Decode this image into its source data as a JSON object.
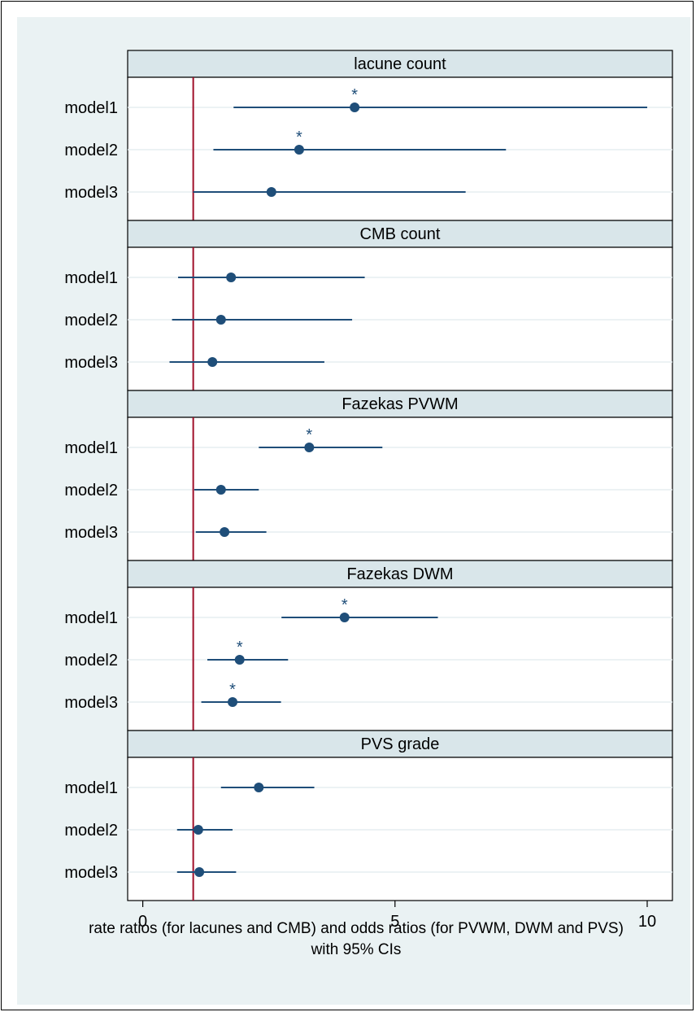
{
  "chart_data": {
    "type": "forest",
    "reference_line": 1,
    "xlim": [
      -0.3,
      10.5
    ],
    "xticks": [
      0,
      5,
      10
    ],
    "xlabel_lines": [
      "rate ratios (for lacunes and CMB) and odds ratios (for PVWM, DWM and PVS)",
      "with 95% CIs"
    ],
    "colors": {
      "point": "#1f4e79",
      "reference": "#a0102a",
      "strip": "#d9e6ea"
    },
    "panels": [
      {
        "title": "lacune count",
        "rows": [
          {
            "label": "model1",
            "est": 4.2,
            "lo": 1.8,
            "hi": 10.0,
            "sig": true
          },
          {
            "label": "model2",
            "est": 3.1,
            "lo": 1.4,
            "hi": 7.2,
            "sig": true
          },
          {
            "label": "model3",
            "est": 2.55,
            "lo": 1.0,
            "hi": 6.4,
            "sig": false
          }
        ]
      },
      {
        "title": "CMB count",
        "rows": [
          {
            "label": "model1",
            "est": 1.75,
            "lo": 0.7,
            "hi": 4.4,
            "sig": false
          },
          {
            "label": "model2",
            "est": 1.55,
            "lo": 0.58,
            "hi": 4.15,
            "sig": false
          },
          {
            "label": "model3",
            "est": 1.38,
            "lo": 0.53,
            "hi": 3.6,
            "sig": false
          }
        ]
      },
      {
        "title": "Fazekas PVWM",
        "rows": [
          {
            "label": "model1",
            "est": 3.3,
            "lo": 2.3,
            "hi": 4.75,
            "sig": true
          },
          {
            "label": "model2",
            "est": 1.55,
            "lo": 1.02,
            "hi": 2.3,
            "sig": false
          },
          {
            "label": "model3",
            "est": 1.62,
            "lo": 1.05,
            "hi": 2.45,
            "sig": false
          }
        ]
      },
      {
        "title": "Fazekas DWM",
        "rows": [
          {
            "label": "model1",
            "est": 4.0,
            "lo": 2.75,
            "hi": 5.85,
            "sig": true
          },
          {
            "label": "model2",
            "est": 1.92,
            "lo": 1.28,
            "hi": 2.88,
            "sig": true
          },
          {
            "label": "model3",
            "est": 1.78,
            "lo": 1.16,
            "hi": 2.74,
            "sig": true
          }
        ]
      },
      {
        "title": "PVS grade",
        "rows": [
          {
            "label": "model1",
            "est": 2.3,
            "lo": 1.55,
            "hi": 3.4,
            "sig": false
          },
          {
            "label": "model2",
            "est": 1.1,
            "lo": 0.68,
            "hi": 1.78,
            "sig": false
          },
          {
            "label": "model3",
            "est": 1.12,
            "lo": 0.68,
            "hi": 1.85,
            "sig": false
          }
        ]
      }
    ],
    "sig_marker": "*"
  }
}
